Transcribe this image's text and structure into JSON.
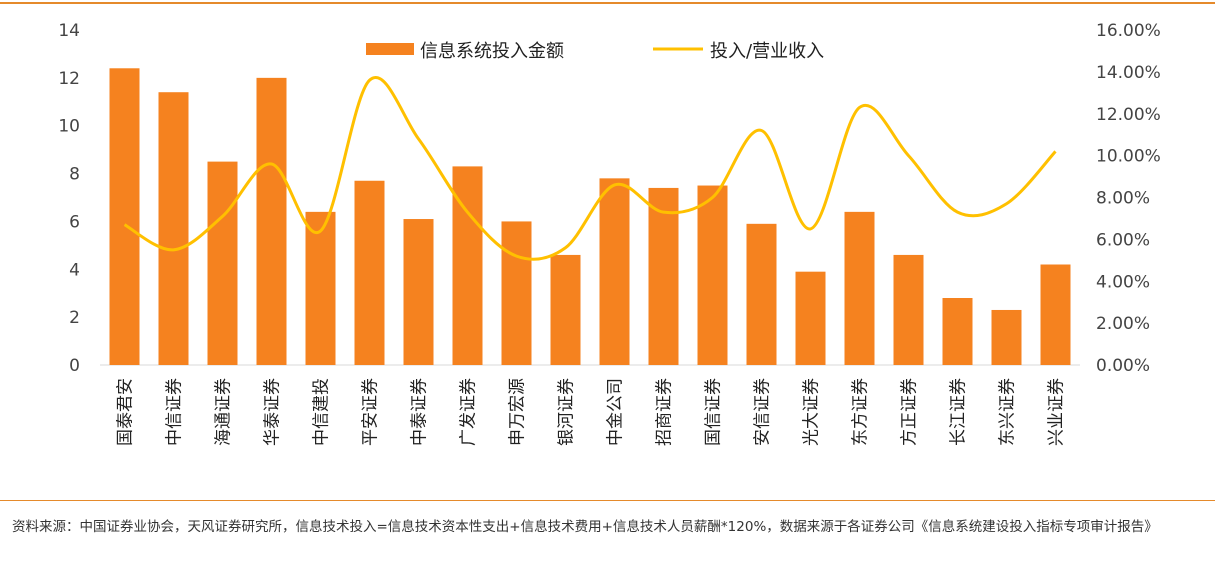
{
  "chart_data": {
    "type": "bar+line",
    "categories": [
      "国泰君安",
      "中信证券",
      "海通证券",
      "华泰证券",
      "中信建投",
      "平安证券",
      "中泰证券",
      "广发证券",
      "申万宏源",
      "银河证券",
      "中金公司",
      "招商证券",
      "国信证券",
      "安信证券",
      "光大证券",
      "东方证券",
      "方正证券",
      "长江证券",
      "东兴证券",
      "兴业证券"
    ],
    "series": [
      {
        "name": "信息系统投入金额",
        "type": "bar",
        "axis": "left",
        "color": "#F5821F",
        "values": [
          12.4,
          11.4,
          8.5,
          12.0,
          6.4,
          7.7,
          6.1,
          8.3,
          6.0,
          4.6,
          7.8,
          7.4,
          7.5,
          5.9,
          3.9,
          6.4,
          4.6,
          2.8,
          2.3,
          4.2
        ]
      },
      {
        "name": "投入/营业收入",
        "type": "line",
        "axis": "right",
        "color": "#FFC000",
        "values": [
          6.7,
          5.5,
          7.1,
          9.6,
          6.4,
          13.6,
          10.8,
          7.3,
          5.2,
          5.6,
          8.6,
          7.3,
          8.0,
          11.2,
          6.5,
          12.3,
          10.0,
          7.3,
          7.7,
          10.2
        ]
      }
    ],
    "y_left": {
      "min": 0,
      "max": 14,
      "ticks": [
        "0",
        "2",
        "4",
        "6",
        "8",
        "10",
        "12",
        "14"
      ]
    },
    "y_right": {
      "min": 0,
      "max": 16,
      "ticks": [
        "0.00%",
        "2.00%",
        "4.00%",
        "6.00%",
        "8.00%",
        "10.00%",
        "12.00%",
        "14.00%",
        "16.00%"
      ]
    },
    "legend_position": "top-center",
    "grid": false
  },
  "source_note": "资料来源：中国证券业协会，天风证券研究所，信息技术投入=信息技术资本性支出+信息技术费用+信息技术人员薪酬*120%，数据来源于各证券公司《信息系统建设投入指标专项审计报告》"
}
